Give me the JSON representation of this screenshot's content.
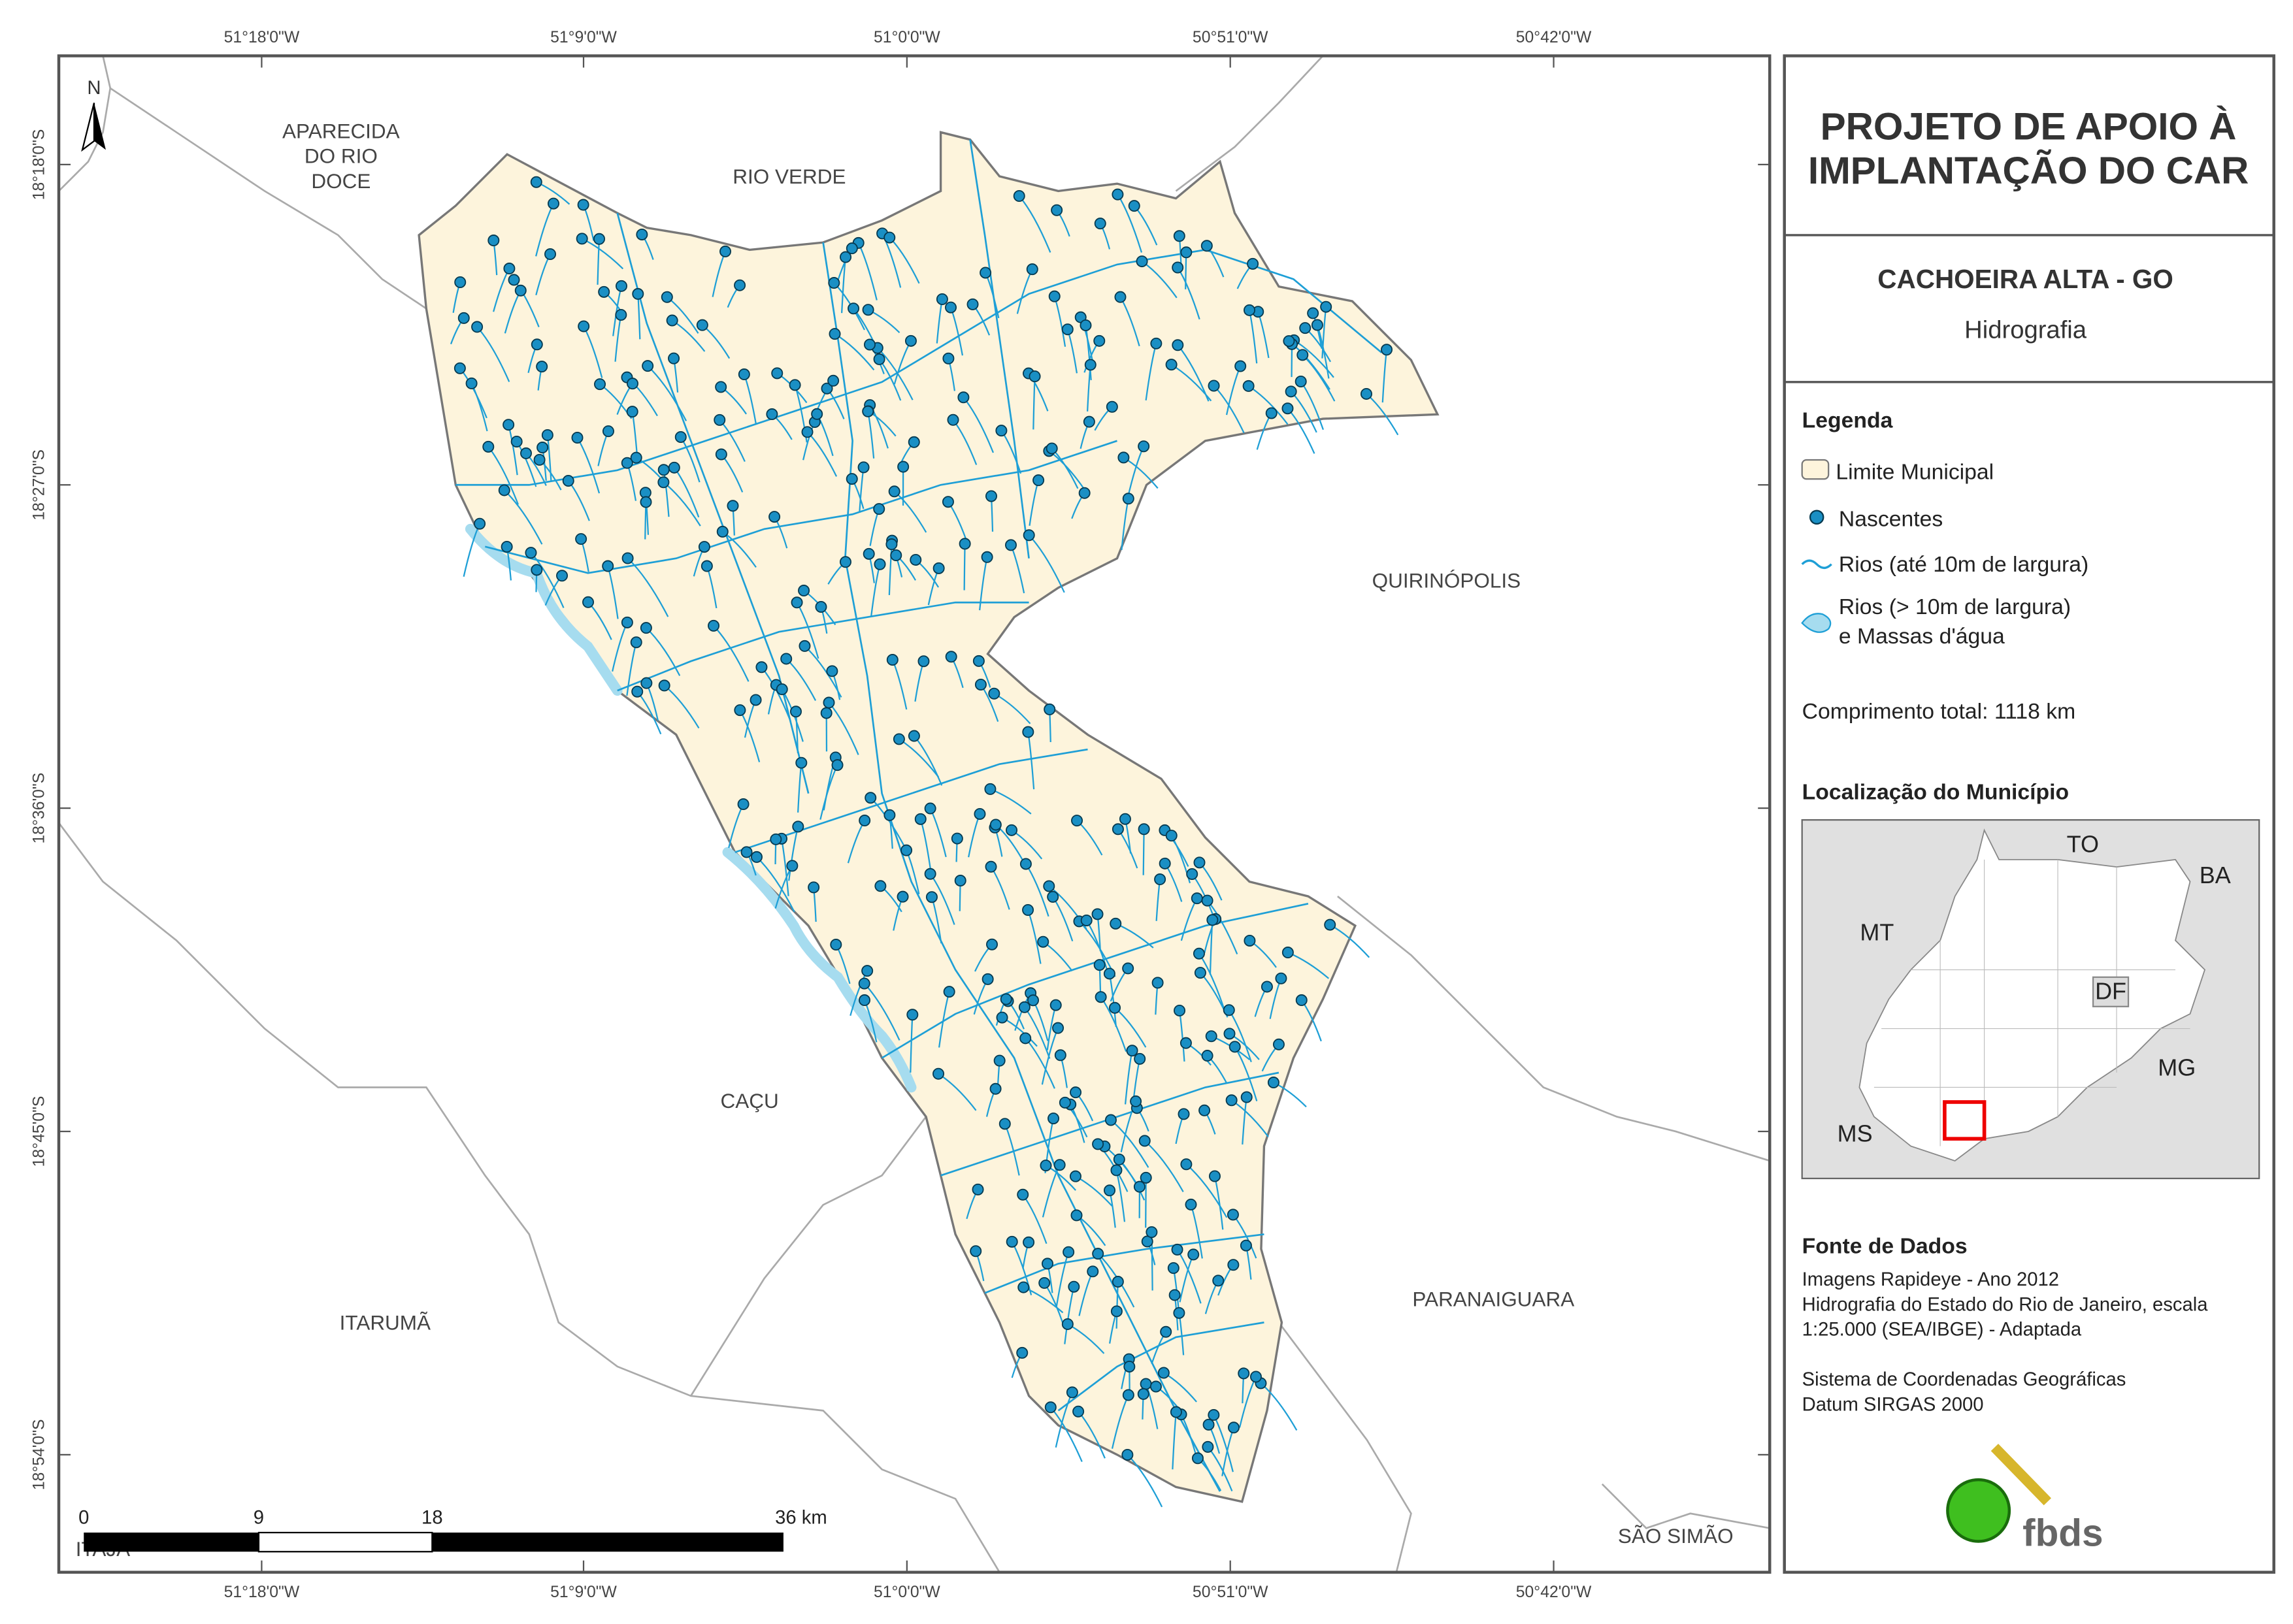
{
  "map": {
    "graticule": {
      "longitudes": [
        "51°18'0\"W",
        "51°9'0\"W",
        "51°0'0\"W",
        "50°51'0\"W",
        "50°42'0\"W"
      ],
      "latitudes": [
        "18°18'0\"S",
        "18°27'0\"S",
        "18°36'0\"S",
        "18°45'0\"S",
        "18°54'0\"S"
      ]
    },
    "north": "N",
    "places": [
      {
        "lines": [
          "APARECIDA",
          "DO RIO",
          "DOCE"
        ]
      },
      {
        "lines": [
          "RIO VERDE"
        ]
      },
      {
        "lines": [
          "QUIRINÓPOLIS"
        ]
      },
      {
        "lines": [
          "CAÇU"
        ]
      },
      {
        "lines": [
          "ITARUMÃ"
        ]
      },
      {
        "lines": [
          "PARANAIGUARA"
        ]
      },
      {
        "lines": [
          "SÃO SIMÃO"
        ]
      },
      {
        "lines": [
          "ITAJÁ"
        ]
      }
    ],
    "scale_bar": [
      "0",
      "9",
      "18",
      "36 km"
    ]
  },
  "panel": {
    "title": [
      "PROJETO DE APOIO À",
      "IMPLANTAÇÃO DO CAR"
    ],
    "municipality": "CACHOEIRA ALTA - GO",
    "theme": "Hidrografia",
    "legend": {
      "heading": "Legenda",
      "items": [
        "Limite Municipal",
        "Nascentes",
        "Rios (até 10m de largura)",
        [
          "Rios (> 10m de largura)",
          "e Massas d'água"
        ]
      ],
      "total": "Comprimento total: 1118 km"
    },
    "location": {
      "heading": "Localização do Município",
      "states": [
        "TO",
        "BA",
        "MT",
        "DF",
        "MG",
        "MS"
      ]
    },
    "sources": {
      "heading": "Fonte de Dados",
      "lines": [
        "Imagens Rapideye - Ano 2012",
        "Hidrografia do Estado do Rio de Janeiro, escala",
        "1:25.000 (SEA/IBGE) - Adaptada",
        "",
        "Sistema de Coordenadas Geográficas",
        "Datum SIRGAS 2000"
      ]
    },
    "logo": "fbds"
  }
}
